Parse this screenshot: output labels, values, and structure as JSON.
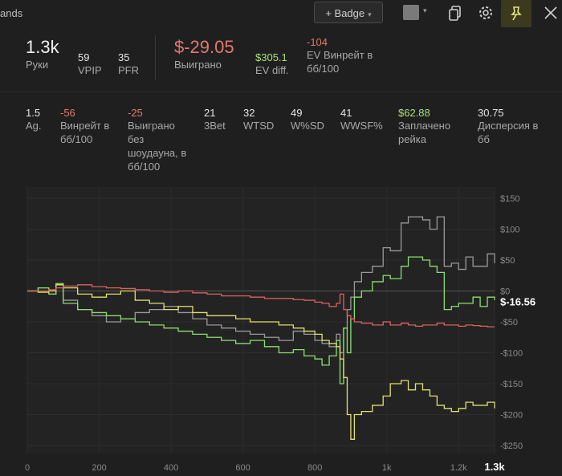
{
  "header": {
    "title": "ands",
    "badge_label": "+ Badge",
    "caret": "▾",
    "color_caret": "▾"
  },
  "summary": {
    "hands_value": "1.3k",
    "hands_label": "Руки",
    "vpip_value": "59",
    "vpip_label": "VPIP",
    "pfr_value": "35",
    "pfr_label": "PFR",
    "won_value": "$-29.05",
    "won_label": "Выиграно",
    "evdiff_value": "$305.1",
    "evdiff_label": "EV diff.",
    "evwinrate_value": "-104",
    "evwinrate_label_1": "EV Винрейт в",
    "evwinrate_label_2": "бб/100"
  },
  "stats": [
    {
      "value": "1.5",
      "label": [
        "Ag."
      ],
      "tone": "normal"
    },
    {
      "value": "-56",
      "label": [
        "Винрейт в",
        "бб/100"
      ],
      "tone": "neg"
    },
    {
      "value": "-25",
      "label": [
        "Выиграно",
        "без",
        "шоудауна, в",
        "бб/100"
      ],
      "tone": "neg"
    },
    {
      "value": "21",
      "label": [
        "3Bet"
      ],
      "tone": "normal"
    },
    {
      "value": "32",
      "label": [
        "WTSD"
      ],
      "tone": "normal"
    },
    {
      "value": "49",
      "label": [
        "W%SD"
      ],
      "tone": "normal"
    },
    {
      "value": "41",
      "label": [
        "WWSF%"
      ],
      "tone": "normal"
    },
    {
      "value": "$62.88",
      "label": [
        "Заплачено",
        "рейка"
      ],
      "tone": "pos"
    },
    {
      "value": "30.75",
      "label": [
        "Дисперсия в",
        "бб"
      ],
      "tone": "normal"
    }
  ],
  "chart_data": {
    "type": "line",
    "xlim": [
      0,
      1300
    ],
    "ylim": [
      -250,
      150
    ],
    "x_ticks": [
      {
        "value": 0,
        "label": "0"
      },
      {
        "value": 200,
        "label": "200"
      },
      {
        "value": 400,
        "label": "400"
      },
      {
        "value": 600,
        "label": "600"
      },
      {
        "value": 800,
        "label": "800"
      },
      {
        "value": 1000,
        "label": "1k"
      },
      {
        "value": 1200,
        "label": "1.2k"
      },
      {
        "value": 1300,
        "label": "1.3k"
      }
    ],
    "y_ticks": [
      {
        "value": 150,
        "label": "$150"
      },
      {
        "value": 100,
        "label": "$100"
      },
      {
        "value": 50,
        "label": "$50"
      },
      {
        "value": 0,
        "label": "$0"
      },
      {
        "value": -50,
        "label": "-$50"
      },
      {
        "value": -100,
        "label": "-$100"
      },
      {
        "value": -150,
        "label": "-$150"
      },
      {
        "value": -200,
        "label": "-$200"
      },
      {
        "value": -250,
        "label": "-$250"
      }
    ],
    "current_value_label": "$-16.56",
    "current_value": -16.56,
    "series": [
      {
        "color": "#9a9a9a",
        "x": [
          0,
          30,
          60,
          80,
          100,
          140,
          180,
          220,
          260,
          300,
          340,
          380,
          420,
          460,
          500,
          540,
          580,
          620,
          660,
          700,
          740,
          770,
          800,
          820,
          840,
          860,
          870,
          880,
          890,
          900,
          910,
          930,
          960,
          990,
          1010,
          1040,
          1060,
          1080,
          1100,
          1120,
          1140,
          1160,
          1180,
          1200,
          1220,
          1240,
          1260,
          1280,
          1300
        ],
        "y": [
          0,
          5,
          -5,
          10,
          -15,
          -30,
          -40,
          -50,
          -45,
          -35,
          -30,
          -25,
          -35,
          -45,
          -55,
          -60,
          -65,
          -70,
          -75,
          -80,
          -65,
          -70,
          -80,
          -85,
          -90,
          -70,
          -100,
          -60,
          -30,
          -10,
          15,
          30,
          40,
          70,
          65,
          110,
          120,
          120,
          115,
          100,
          120,
          40,
          45,
          35,
          55,
          40,
          40,
          60,
          45
        ]
      },
      {
        "color": "#8be06e",
        "x": [
          0,
          30,
          60,
          80,
          100,
          140,
          180,
          220,
          260,
          300,
          340,
          380,
          420,
          460,
          500,
          540,
          580,
          620,
          660,
          700,
          740,
          770,
          800,
          820,
          840,
          860,
          870,
          880,
          890,
          900,
          910,
          930,
          960,
          990,
          1010,
          1040,
          1060,
          1080,
          1100,
          1120,
          1140,
          1160,
          1180,
          1200,
          1220,
          1240,
          1260,
          1280,
          1300
        ],
        "y": [
          0,
          5,
          -5,
          12,
          -20,
          -30,
          -35,
          -40,
          -45,
          -50,
          -55,
          -60,
          -65,
          -70,
          -75,
          -80,
          -85,
          -80,
          -90,
          -100,
          -95,
          -105,
          -110,
          -120,
          -105,
          -80,
          -150,
          -60,
          -100,
          -45,
          -10,
          0,
          15,
          25,
          20,
          40,
          55,
          55,
          50,
          40,
          30,
          -30,
          -25,
          -20,
          -20,
          -10,
          -25,
          -10,
          -15
        ]
      },
      {
        "color": "#e0e06e",
        "x": [
          0,
          30,
          60,
          80,
          100,
          140,
          180,
          220,
          260,
          300,
          340,
          380,
          420,
          460,
          500,
          540,
          580,
          620,
          660,
          700,
          740,
          770,
          800,
          820,
          840,
          860,
          870,
          880,
          890,
          900,
          910,
          930,
          960,
          990,
          1010,
          1040,
          1060,
          1080,
          1100,
          1120,
          1140,
          1160,
          1180,
          1200,
          1220,
          1240,
          1260,
          1280,
          1300
        ],
        "y": [
          0,
          -2,
          0,
          10,
          5,
          -5,
          -10,
          -5,
          0,
          -15,
          -20,
          -30,
          -25,
          -35,
          -40,
          -40,
          -45,
          -50,
          -50,
          -55,
          -60,
          -65,
          -70,
          -80,
          -85,
          -90,
          -110,
          -140,
          -200,
          -240,
          -200,
          -195,
          -185,
          -170,
          -150,
          -145,
          -160,
          -150,
          -160,
          -170,
          -185,
          -190,
          -195,
          -190,
          -180,
          -185,
          -185,
          -180,
          -190
        ]
      },
      {
        "color": "#e06060",
        "x": [
          0,
          30,
          60,
          80,
          100,
          140,
          180,
          220,
          260,
          300,
          340,
          380,
          420,
          460,
          500,
          540,
          580,
          620,
          660,
          700,
          740,
          770,
          800,
          820,
          840,
          860,
          870,
          880,
          890,
          900,
          910,
          930,
          960,
          990,
          1010,
          1040,
          1060,
          1080,
          1100,
          1120,
          1140,
          1160,
          1180,
          1200,
          1220,
          1240,
          1260,
          1280,
          1300
        ],
        "y": [
          0,
          0,
          2,
          5,
          8,
          10,
          7,
          5,
          4,
          2,
          0,
          -2,
          0,
          -3,
          -5,
          -8,
          -8,
          -10,
          -12,
          -12,
          -14,
          -15,
          -18,
          -20,
          -25,
          -20,
          -5,
          -30,
          -40,
          -45,
          -50,
          -52,
          -55,
          -50,
          -55,
          -52,
          -55,
          -57,
          -55,
          -55,
          -52,
          -55,
          -55,
          -57,
          -55,
          -56,
          -57,
          -58,
          -58
        ]
      }
    ]
  }
}
